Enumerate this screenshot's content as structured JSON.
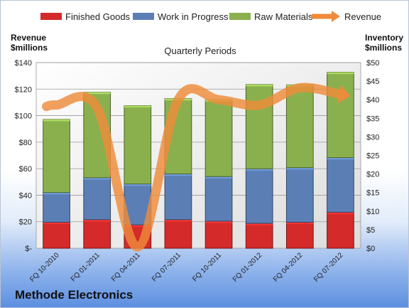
{
  "company": "Methode Electronics",
  "chart_data": {
    "type": "bar",
    "stacked": true,
    "title": "Quarterly Periods",
    "categories": [
      "FQ 10-2010",
      "FQ 01-2011",
      "FQ 04-2011",
      "FQ 07-2011",
      "FQ 10-2011",
      "FQ 01-2012",
      "FQ 04-2012",
      "FQ 07-2012"
    ],
    "ylabel_left": [
      "Revenue",
      "$millions"
    ],
    "ylabel_right": [
      "Inventory",
      "$millions"
    ],
    "left_axis": {
      "min": 0,
      "max": 140,
      "step": 20,
      "ticks": [
        "$-",
        "$20",
        "$40",
        "$60",
        "$80",
        "$100",
        "$120",
        "$140"
      ]
    },
    "right_axis": {
      "min": 0,
      "max": 50,
      "step": 5,
      "ticks": [
        "$0",
        "$5",
        "$10",
        "$15",
        "$20",
        "$25",
        "$30",
        "$35",
        "$40",
        "$45",
        "$50"
      ]
    },
    "series": [
      {
        "name": "Finished Goods",
        "axis": "right",
        "color": "#d42a2a",
        "values": [
          7.0,
          7.7,
          6.3,
          7.7,
          7.3,
          6.7,
          7.0,
          9.7
        ]
      },
      {
        "name": "Work in Progress",
        "axis": "right",
        "color": "#5b7fb5",
        "values": [
          8.0,
          11.3,
          11.0,
          12.3,
          12.0,
          14.7,
          14.7,
          14.7
        ]
      },
      {
        "name": "Raw Materials",
        "axis": "right",
        "color": "#8ab04e",
        "values": [
          19.7,
          23.0,
          21.1,
          20.3,
          20.7,
          22.7,
          22.3,
          23.0
        ]
      },
      {
        "name": "Revenue",
        "axis": "left",
        "type": "line",
        "color": "#ef8b3a",
        "values": [
          108,
          106,
          1,
          112,
          112,
          108,
          121,
          116
        ]
      }
    ],
    "legend_position": "top",
    "grid": true
  }
}
